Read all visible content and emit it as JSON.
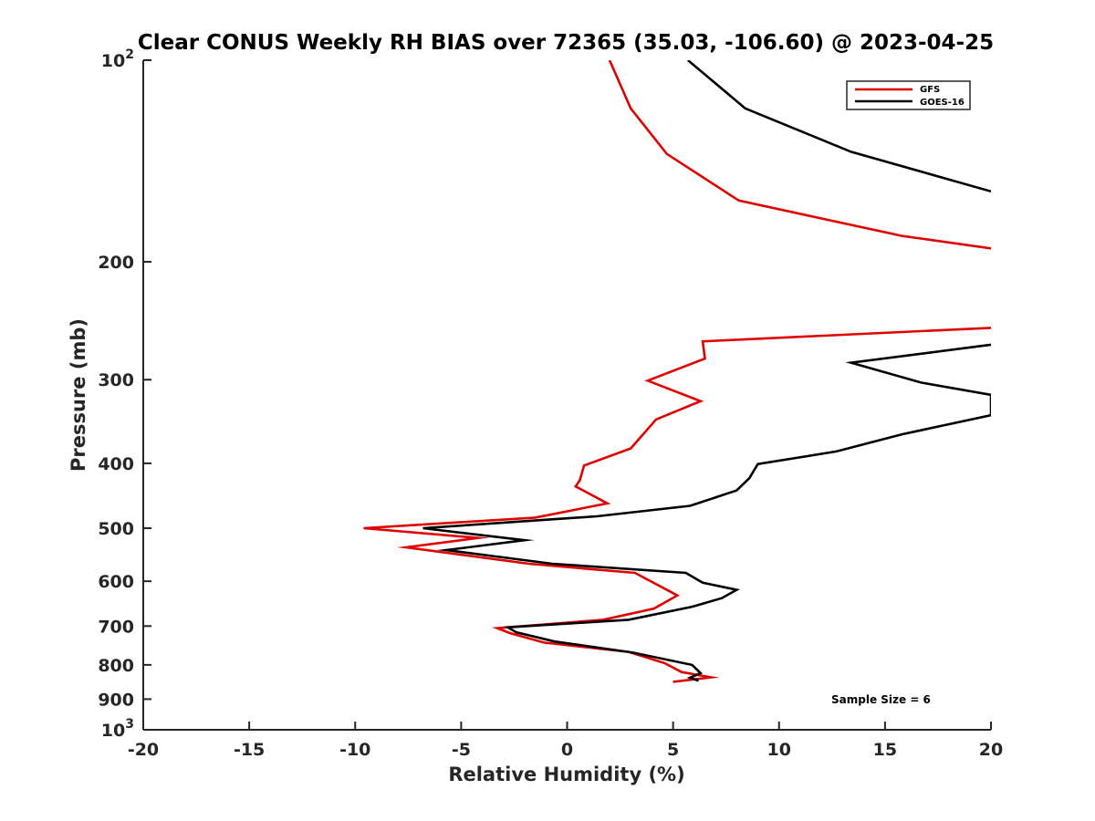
{
  "chart_data": {
    "type": "line",
    "title": "Clear CONUS Weekly RH BIAS over 72365 (35.03, -106.60) @ 2023-04-25",
    "xlabel": "Relative Humidity (%)",
    "ylabel": "Pressure (mb)",
    "xlim": [
      -20,
      20
    ],
    "ylim": [
      1000,
      100
    ],
    "y_scale": "log",
    "y_reversed": true,
    "x_ticks": [
      "-20",
      "-15",
      "-10",
      "-5",
      "0",
      "5",
      "10",
      "15",
      "20"
    ],
    "y_ticks": [
      {
        "value": 100,
        "base": "10",
        "exp": "2"
      },
      {
        "value": 200,
        "label": "200"
      },
      {
        "value": 300,
        "label": "300"
      },
      {
        "value": 400,
        "label": "400"
      },
      {
        "value": 500,
        "label": "500"
      },
      {
        "value": 600,
        "label": "600"
      },
      {
        "value": 700,
        "label": "700"
      },
      {
        "value": 800,
        "label": "800"
      },
      {
        "value": 900,
        "label": "900"
      },
      {
        "value": 1000,
        "base": "10",
        "exp": "3"
      }
    ],
    "grid": false,
    "legend_position": "top-right",
    "series": [
      {
        "name": "GFS",
        "color": "#e00000",
        "segments": [
          [
            [
              2.0,
              100
            ],
            [
              3.0,
              118
            ],
            [
              4.7,
              138
            ],
            [
              8.1,
              162
            ],
            [
              15.8,
              183
            ],
            [
              20.0,
              191
            ]
          ],
          [
            [
              20.0,
              251
            ],
            [
              6.4,
              263
            ],
            [
              6.5,
              279
            ],
            [
              3.8,
              301
            ],
            [
              6.3,
              323
            ],
            [
              4.2,
              344
            ],
            [
              3.0,
              380
            ],
            [
              0.8,
              403
            ],
            [
              0.6,
              424
            ],
            [
              0.4,
              433
            ],
            [
              1.9,
              459
            ],
            [
              -1.5,
              482
            ],
            [
              -9.6,
              500
            ],
            [
              -4.2,
              517
            ],
            [
              -7.6,
              534
            ],
            [
              -1.8,
              565
            ],
            [
              3.2,
              583
            ],
            [
              5.2,
              630
            ],
            [
              4.1,
              659
            ],
            [
              1.7,
              685
            ],
            [
              -3.3,
              705
            ],
            [
              -2.7,
              717
            ],
            [
              -1.1,
              741
            ],
            [
              2.9,
              765
            ],
            [
              4.6,
              795
            ],
            [
              5.4,
              820
            ],
            [
              6.8,
              835
            ],
            [
              5.0,
              848
            ]
          ]
        ]
      },
      {
        "name": "GOES-16",
        "color": "#000000",
        "segments": [
          [
            [
              5.7,
              100
            ],
            [
              8.4,
              118
            ],
            [
              13.4,
              137
            ],
            [
              20.0,
              157
            ]
          ],
          [
            [
              20.0,
              266
            ],
            [
              19.6,
              267
            ],
            [
              13.4,
              283
            ],
            [
              16.7,
              303
            ],
            [
              20.0,
              316
            ],
            [
              20.0,
              339
            ],
            [
              15.8,
              362
            ],
            [
              12.7,
              384
            ],
            [
              9.0,
              401
            ],
            [
              8.6,
              421
            ],
            [
              8.0,
              439
            ],
            [
              5.8,
              463
            ],
            [
              1.4,
              480
            ],
            [
              -6.8,
              500
            ],
            [
              -2.0,
              521
            ],
            [
              -5.7,
              539
            ],
            [
              -0.7,
              565
            ],
            [
              5.6,
              583
            ],
            [
              6.4,
              603
            ],
            [
              8.0,
              618
            ],
            [
              7.3,
              636
            ],
            [
              5.9,
              655
            ],
            [
              2.9,
              685
            ],
            [
              -2.8,
              703
            ],
            [
              -2.4,
              715
            ],
            [
              -0.6,
              738
            ],
            [
              3.1,
              767
            ],
            [
              5.9,
              800
            ],
            [
              6.3,
              823
            ],
            [
              5.8,
              836
            ],
            [
              6.2,
              845
            ]
          ]
        ]
      }
    ],
    "annotations": [
      {
        "text": "Sample Size = 6"
      }
    ]
  }
}
